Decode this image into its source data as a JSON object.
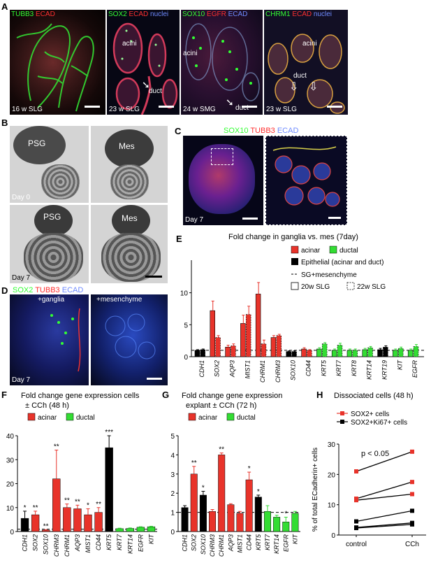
{
  "figure": {
    "panelA": {
      "letter": "A",
      "tiles": [
        {
          "stains": [
            {
              "t": "TUBB3",
              "c": "#33ff33"
            },
            {
              "t": " ECAD",
              "c": "#ff3030"
            }
          ],
          "caption": "16 w SLG",
          "notes": []
        },
        {
          "stains": [
            {
              "t": "SOX2",
              "c": "#33ff33"
            },
            {
              "t": " ECAD",
              "c": "#ff3030"
            },
            {
              "t": " nuclei",
              "c": "#6f8bff"
            }
          ],
          "caption": "23 w SLG",
          "notes": [
            "acini",
            "duct"
          ]
        },
        {
          "stains": [
            {
              "t": "SOX10",
              "c": "#33ff33"
            },
            {
              "t": " EGFR",
              "c": "#ff3030"
            },
            {
              "t": " ECAD",
              "c": "#6f8bff"
            }
          ],
          "caption": "24 w SMG",
          "notes": [
            "acini",
            "duct"
          ]
        },
        {
          "stains": [
            {
              "t": "CHRM1",
              "c": "#33ff33"
            },
            {
              "t": " ECAD",
              "c": "#ff3030"
            },
            {
              "t": " nuclei",
              "c": "#6f8bff"
            }
          ],
          "caption": "23 w SLG",
          "notes": [
            "acini",
            "duct"
          ]
        }
      ]
    },
    "panelB": {
      "letter": "B",
      "labels": [
        "PSG",
        "Mes",
        "PSG",
        "Mes"
      ],
      "days": [
        "Day 0",
        "Day 7"
      ]
    },
    "panelC": {
      "letter": "C",
      "stains": [
        {
          "t": "SOX10",
          "c": "#33ff33"
        },
        {
          "t": " TUBB3",
          "c": "#ff3030"
        },
        {
          "t": " ECAD",
          "c": "#6f8bff"
        }
      ],
      "day": "Day 7"
    },
    "panelD": {
      "letter": "D",
      "stains": [
        {
          "t": "SOX2",
          "c": "#33ff33"
        },
        {
          "t": " TUBB3",
          "c": "#ff3030"
        },
        {
          "t": " ECAD",
          "c": "#6f8bff"
        }
      ],
      "left": "+ganglia",
      "right": "+mesenchyme",
      "day": "Day 7"
    }
  },
  "chart_data": [
    {
      "id": "E",
      "letter": "E",
      "type": "bar",
      "title": "Fold change in ganglia vs. mes (7day)",
      "ylim": [
        0,
        14
      ],
      "yticks": [
        0,
        5,
        10
      ],
      "categories": [
        "CDH1",
        "SOX2",
        "AQP3",
        "MIST1",
        "CHRM1",
        "CHRM3",
        "SOX10",
        "CD44",
        "KRT5",
        "KRT7",
        "KRT8",
        "KRT14",
        "KRT19",
        "KIT",
        "EGFR"
      ],
      "group": [
        "epi",
        "acinar",
        "acinar",
        "acinar",
        "acinar",
        "acinar",
        "epi",
        "acinar",
        "ductal",
        "ductal",
        "ductal",
        "ductal",
        "epi",
        "ductal",
        "ductal"
      ],
      "series": [
        {
          "name": "20w SLG",
          "values": [
            1.0,
            7.2,
            1.5,
            5.2,
            9.8,
            3.0,
            0.8,
            1.2,
            1.2,
            1.0,
            1.0,
            1.1,
            1.1,
            1.0,
            1.0
          ],
          "errors": [
            0.1,
            1.5,
            0.3,
            1.3,
            1.8,
            0.3,
            0.1,
            0.2,
            0.2,
            0.2,
            0.2,
            0.2,
            0.2,
            0.2,
            0.2
          ]
        },
        {
          "name": "22w SLG",
          "values": [
            1.1,
            3.0,
            1.7,
            6.6,
            2.0,
            3.3,
            0.8,
            1.0,
            2.0,
            1.8,
            1.0,
            1.4,
            1.5,
            1.3,
            1.6
          ],
          "errors": [
            0.1,
            0.3,
            0.3,
            1.3,
            0.6,
            0.2,
            0.1,
            0.1,
            0.2,
            0.3,
            0.2,
            0.2,
            0.2,
            0.2,
            0.3
          ]
        }
      ],
      "legend": {
        "acinar": "acinar",
        "ductal": "ductal",
        "epi": "Epithelial (acinar and duct)",
        "dashed": "SG+mesenchyme",
        "solid_box": "20w SLG",
        "dashed_box": "22w SLG"
      }
    },
    {
      "id": "F",
      "letter": "F",
      "type": "bar",
      "title": "Fold change gene expression cells",
      "subtitle": "± CCh (48 h)",
      "ylim": [
        0,
        40
      ],
      "yticks": [
        0,
        10,
        20,
        30,
        40
      ],
      "legend": {
        "acinar": "acinar",
        "ductal": "ductal"
      },
      "categories": [
        "CDH1",
        "SOX2",
        "SOX10",
        "CHRM3",
        "CHRM1",
        "AQP3",
        "MIST1",
        "CD44",
        "KRT5",
        "KRT7",
        "KRT14",
        "EGFR",
        "KIT"
      ],
      "group": [
        "epi",
        "acinar",
        "acinar",
        "acinar",
        "acinar",
        "acinar",
        "acinar",
        "acinar",
        "epi",
        "ductal",
        "ductal",
        "ductal",
        "ductal"
      ],
      "values": [
        5.5,
        7.0,
        0.6,
        22.0,
        10.0,
        9.5,
        7.0,
        8.0,
        35.0,
        1.2,
        1.3,
        1.8,
        2.0
      ],
      "errors": [
        3.0,
        1.5,
        0.2,
        12.0,
        1.5,
        1.5,
        2.5,
        2.0,
        5.0,
        0.2,
        0.2,
        0.2,
        0.2
      ],
      "sig": [
        "*",
        "**",
        "**",
        "**",
        "**",
        "**",
        "*",
        "**",
        "***",
        "",
        "",
        "",
        ""
      ]
    },
    {
      "id": "G",
      "letter": "G",
      "type": "bar",
      "title": "Fold change gene expression",
      "subtitle": "explant ± CCh (72 h)",
      "ylim": [
        0,
        5
      ],
      "yticks": [
        0,
        1,
        2,
        3,
        4,
        5
      ],
      "legend": {
        "acinar": "acinar",
        "ductal": "ductal"
      },
      "categories": [
        "CDH1",
        "SOX2",
        "SOX10",
        "CHRM3",
        "CHRM1",
        "AQP3",
        "MIST1",
        "CD44",
        "KRT5",
        "KRT7",
        "KRT14",
        "EGFR",
        "KIT"
      ],
      "group": [
        "epi",
        "acinar",
        "epi",
        "acinar",
        "acinar",
        "acinar",
        "acinar",
        "acinar",
        "epi",
        "ductal",
        "ductal",
        "ductal",
        "ductal"
      ],
      "values": [
        1.25,
        3.0,
        1.9,
        1.05,
        4.0,
        1.4,
        0.95,
        2.7,
        1.8,
        1.05,
        0.75,
        0.5,
        0.95
      ],
      "errors": [
        0.1,
        0.4,
        0.2,
        0.1,
        0.1,
        0.05,
        0.1,
        0.4,
        0.1,
        0.3,
        0.1,
        0.25,
        0.1
      ],
      "sig": [
        "",
        "**",
        "*",
        "",
        "**",
        "",
        "",
        "*",
        "*",
        "",
        "",
        "*",
        ""
      ]
    },
    {
      "id": "H",
      "letter": "H",
      "type": "line",
      "title": "Dissociated cells (48 h)",
      "ylabel": "% of total ECadherin+ cells",
      "ylim": [
        0,
        30
      ],
      "yticks": [
        0,
        10,
        20,
        30
      ],
      "categories": [
        "control",
        "CCh"
      ],
      "annotation": "p < 0.05",
      "legend": [
        {
          "name": "SOX2+ cells",
          "color": "#e8332a"
        },
        {
          "name": "SOX2+Ki67+ cells",
          "color": "#000000"
        }
      ],
      "pairs": [
        {
          "kind": "sox2",
          "v": [
            21,
            27.5
          ]
        },
        {
          "kind": "sox2",
          "v": [
            12,
            17.5
          ]
        },
        {
          "kind": "sox2",
          "v": [
            11.5,
            13.5
          ]
        },
        {
          "kind": "ki67",
          "v": [
            4.5,
            8
          ]
        },
        {
          "kind": "ki67",
          "v": [
            2.5,
            4
          ]
        },
        {
          "kind": "ki67",
          "v": [
            2.3,
            3.5
          ]
        }
      ]
    }
  ],
  "colors": {
    "acinar": "#e8332a",
    "ductal": "#33dd33",
    "epi": "#000000"
  }
}
